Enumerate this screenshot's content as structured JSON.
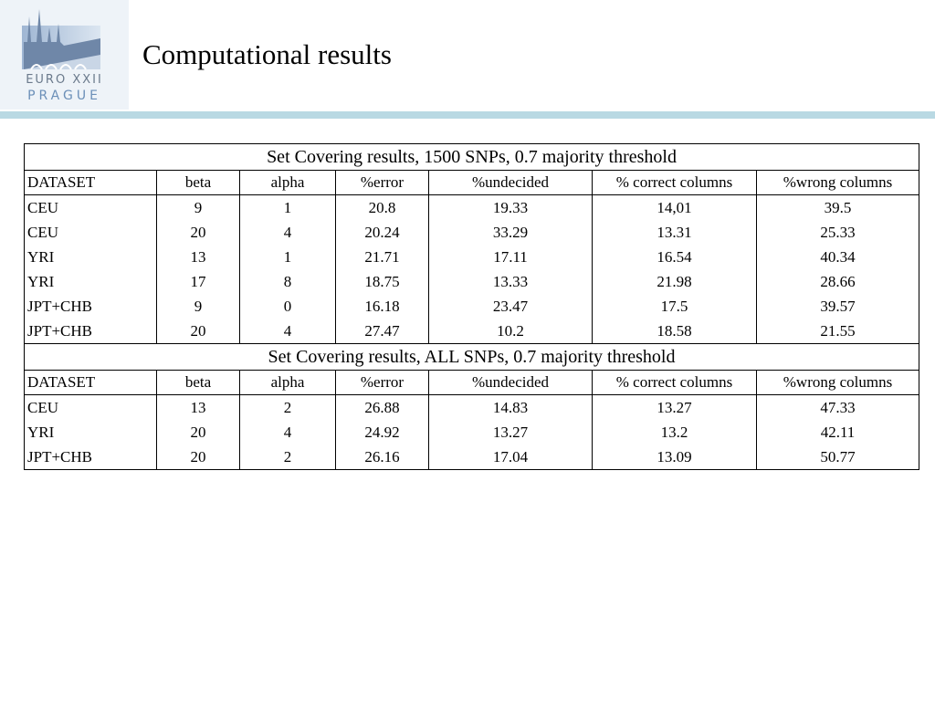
{
  "logo": {
    "line1": "EURO XXII",
    "line2": "PRAGUE"
  },
  "title": "Computational results",
  "columns": [
    "DATASET",
    "beta",
    "alpha",
    "%error",
    "%undecided",
    "% correct columns",
    "%wrong columns"
  ],
  "table1": {
    "caption": "Set Covering results, 1500 SNPs, 0.7 majority threshold",
    "rows": [
      [
        "CEU",
        "9",
        "1",
        "20.8",
        "19.33",
        "14,01",
        "39.5"
      ],
      [
        "CEU",
        "20",
        "4",
        "20.24",
        "33.29",
        "13.31",
        "25.33"
      ],
      [
        "YRI",
        "13",
        "1",
        "21.71",
        "17.11",
        "16.54",
        "40.34"
      ],
      [
        "YRI",
        "17",
        "8",
        "18.75",
        "13.33",
        "21.98",
        "28.66"
      ],
      [
        "JPT+CHB",
        "9",
        "0",
        "16.18",
        "23.47",
        "17.5",
        "39.57"
      ],
      [
        "JPT+CHB",
        "20",
        "4",
        "27.47",
        "10.2",
        "18.58",
        "21.55"
      ]
    ]
  },
  "table2": {
    "caption": "Set Covering results, ALL SNPs, 0.7 majority threshold",
    "rows": [
      [
        "CEU",
        "13",
        "2",
        "26.88",
        "14.83",
        "13.27",
        "47.33"
      ],
      [
        "YRI",
        "20",
        "4",
        "24.92",
        "13.27",
        "13.2",
        "42.11"
      ],
      [
        "JPT+CHB",
        "20",
        "2",
        "26.16",
        "17.04",
        "13.09",
        "50.77"
      ]
    ]
  }
}
